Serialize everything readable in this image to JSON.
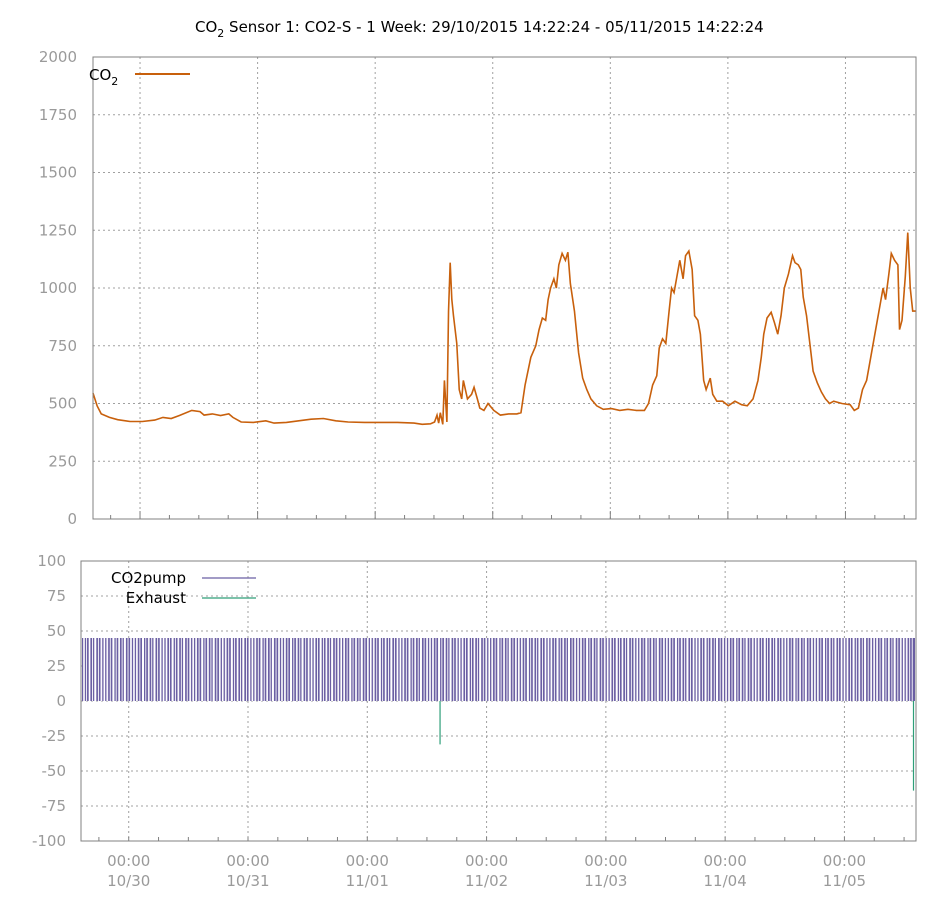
{
  "chart_data": [
    {
      "type": "line",
      "title_main": "CO",
      "title_sub": "2",
      "title_rest": " Sensor 1: CO2-S - 1 Week: 29/10/2015 14:22:24 - 05/11/2015 14:22:24",
      "ylim": [
        0,
        2000
      ],
      "yticks": [
        "0",
        "250",
        "500",
        "750",
        "1000",
        "1250",
        "1500",
        "1750",
        "2000"
      ],
      "grid": true,
      "legend_position": "top-left",
      "color": "#c8600c",
      "series": [
        {
          "name": "CO",
          "name_sub": "2",
          "points": [
            [
              0.0,
              545
            ],
            [
              0.05,
              490
            ],
            [
              0.1,
              455
            ],
            [
              0.2,
              440
            ],
            [
              0.3,
              430
            ],
            [
              0.45,
              422
            ],
            [
              0.6,
              422
            ],
            [
              0.75,
              428
            ],
            [
              0.85,
              440
            ],
            [
              0.95,
              435
            ],
            [
              1.05,
              448
            ],
            [
              1.2,
              470
            ],
            [
              1.3,
              465
            ],
            [
              1.35,
              450
            ],
            [
              1.45,
              455
            ],
            [
              1.55,
              448
            ],
            [
              1.65,
              455
            ],
            [
              1.7,
              440
            ],
            [
              1.8,
              420
            ],
            [
              1.95,
              418
            ],
            [
              2.1,
              425
            ],
            [
              2.2,
              415
            ],
            [
              2.35,
              418
            ],
            [
              2.5,
              425
            ],
            [
              2.65,
              432
            ],
            [
              2.8,
              435
            ],
            [
              2.95,
              425
            ],
            [
              3.1,
              420
            ],
            [
              3.3,
              418
            ],
            [
              3.5,
              418
            ],
            [
              3.7,
              418
            ],
            [
              3.9,
              415
            ],
            [
              4.0,
              410
            ],
            [
              4.1,
              412
            ],
            [
              4.15,
              420
            ],
            [
              4.18,
              450
            ],
            [
              4.2,
              415
            ],
            [
              4.22,
              460
            ],
            [
              4.25,
              410
            ],
            [
              4.27,
              600
            ],
            [
              4.3,
              420
            ],
            [
              4.32,
              900
            ],
            [
              4.34,
              1110
            ],
            [
              4.36,
              950
            ],
            [
              4.38,
              880
            ],
            [
              4.42,
              760
            ],
            [
              4.45,
              560
            ],
            [
              4.48,
              520
            ],
            [
              4.5,
              600
            ],
            [
              4.55,
              520
            ],
            [
              4.6,
              540
            ],
            [
              4.63,
              570
            ],
            [
              4.67,
              520
            ],
            [
              4.7,
              480
            ],
            [
              4.75,
              470
            ],
            [
              4.8,
              500
            ],
            [
              4.87,
              470
            ],
            [
              4.95,
              450
            ],
            [
              5.05,
              455
            ],
            [
              5.15,
              455
            ],
            [
              5.2,
              460
            ],
            [
              5.25,
              580
            ],
            [
              5.32,
              700
            ],
            [
              5.38,
              750
            ],
            [
              5.42,
              820
            ],
            [
              5.46,
              870
            ],
            [
              5.5,
              860
            ],
            [
              5.53,
              950
            ],
            [
              5.56,
              1000
            ],
            [
              5.6,
              1040
            ],
            [
              5.63,
              1000
            ],
            [
              5.66,
              1100
            ],
            [
              5.7,
              1150
            ],
            [
              5.74,
              1120
            ],
            [
              5.77,
              1155
            ],
            [
              5.8,
              1020
            ],
            [
              5.85,
              900
            ],
            [
              5.9,
              720
            ],
            [
              5.95,
              610
            ],
            [
              6.0,
              560
            ],
            [
              6.05,
              520
            ],
            [
              6.12,
              490
            ],
            [
              6.2,
              475
            ],
            [
              6.3,
              478
            ],
            [
              6.4,
              470
            ],
            [
              6.5,
              475
            ],
            [
              6.6,
              470
            ],
            [
              6.7,
              470
            ],
            [
              6.75,
              500
            ],
            [
              6.8,
              580
            ],
            [
              6.85,
              620
            ],
            [
              6.88,
              740
            ],
            [
              6.92,
              780
            ],
            [
              6.96,
              760
            ],
            [
              7.0,
              900
            ],
            [
              7.03,
              1000
            ],
            [
              7.06,
              980
            ],
            [
              7.1,
              1060
            ],
            [
              7.13,
              1120
            ],
            [
              7.17,
              1040
            ],
            [
              7.2,
              1140
            ],
            [
              7.24,
              1160
            ],
            [
              7.28,
              1080
            ],
            [
              7.31,
              880
            ],
            [
              7.35,
              860
            ],
            [
              7.38,
              800
            ],
            [
              7.42,
              600
            ],
            [
              7.45,
              560
            ],
            [
              7.5,
              610
            ],
            [
              7.53,
              540
            ],
            [
              7.58,
              510
            ],
            [
              7.65,
              510
            ],
            [
              7.72,
              490
            ],
            [
              7.8,
              510
            ],
            [
              7.88,
              495
            ],
            [
              7.95,
              490
            ],
            [
              8.02,
              520
            ],
            [
              8.08,
              600
            ],
            [
              8.12,
              700
            ],
            [
              8.15,
              800
            ],
            [
              8.19,
              870
            ],
            [
              8.24,
              895
            ],
            [
              8.28,
              850
            ],
            [
              8.32,
              800
            ],
            [
              8.36,
              880
            ],
            [
              8.4,
              1000
            ],
            [
              8.45,
              1060
            ],
            [
              8.5,
              1140
            ],
            [
              8.53,
              1110
            ],
            [
              8.57,
              1100
            ],
            [
              8.6,
              1080
            ],
            [
              8.63,
              960
            ],
            [
              8.67,
              880
            ],
            [
              8.71,
              760
            ],
            [
              8.75,
              640
            ],
            [
              8.8,
              590
            ],
            [
              8.85,
              550
            ],
            [
              8.9,
              520
            ],
            [
              8.95,
              500
            ],
            [
              9.0,
              510
            ],
            [
              9.1,
              500
            ],
            [
              9.2,
              495
            ],
            [
              9.25,
              470
            ],
            [
              9.3,
              480
            ],
            [
              9.35,
              560
            ],
            [
              9.4,
              600
            ],
            [
              9.45,
              700
            ],
            [
              9.5,
              800
            ],
            [
              9.55,
              900
            ],
            [
              9.6,
              1000
            ],
            [
              9.63,
              950
            ],
            [
              9.67,
              1060
            ],
            [
              9.7,
              1150
            ],
            [
              9.74,
              1120
            ],
            [
              9.78,
              1100
            ],
            [
              9.8,
              820
            ],
            [
              9.83,
              860
            ],
            [
              9.87,
              1050
            ],
            [
              9.9,
              1240
            ],
            [
              9.93,
              1000
            ],
            [
              9.96,
              900
            ],
            [
              10.0,
              900
            ]
          ]
        }
      ]
    },
    {
      "type": "bar",
      "ylim": [
        -100,
        100
      ],
      "yticks": [
        "-100",
        "-75",
        "-50",
        "-25",
        "0",
        "25",
        "50",
        "75",
        "100"
      ],
      "xticks_time": [
        "00:00",
        "00:00",
        "00:00",
        "00:00",
        "00:00",
        "00:00",
        "00:00"
      ],
      "xticks_date": [
        "10/30",
        "10/31",
        "11/01",
        "11/02",
        "11/03",
        "11/04",
        "11/05"
      ],
      "grid": true,
      "legend_position": "top-left",
      "series": [
        {
          "name": "CO2pump",
          "color": "#6b5fa3",
          "value": 45,
          "pulses": 420
        },
        {
          "name": "Exhaust",
          "color": "#2e9e78",
          "spikes": [
            [
              4.3,
              -31
            ],
            [
              9.97,
              -64
            ]
          ]
        }
      ]
    }
  ]
}
